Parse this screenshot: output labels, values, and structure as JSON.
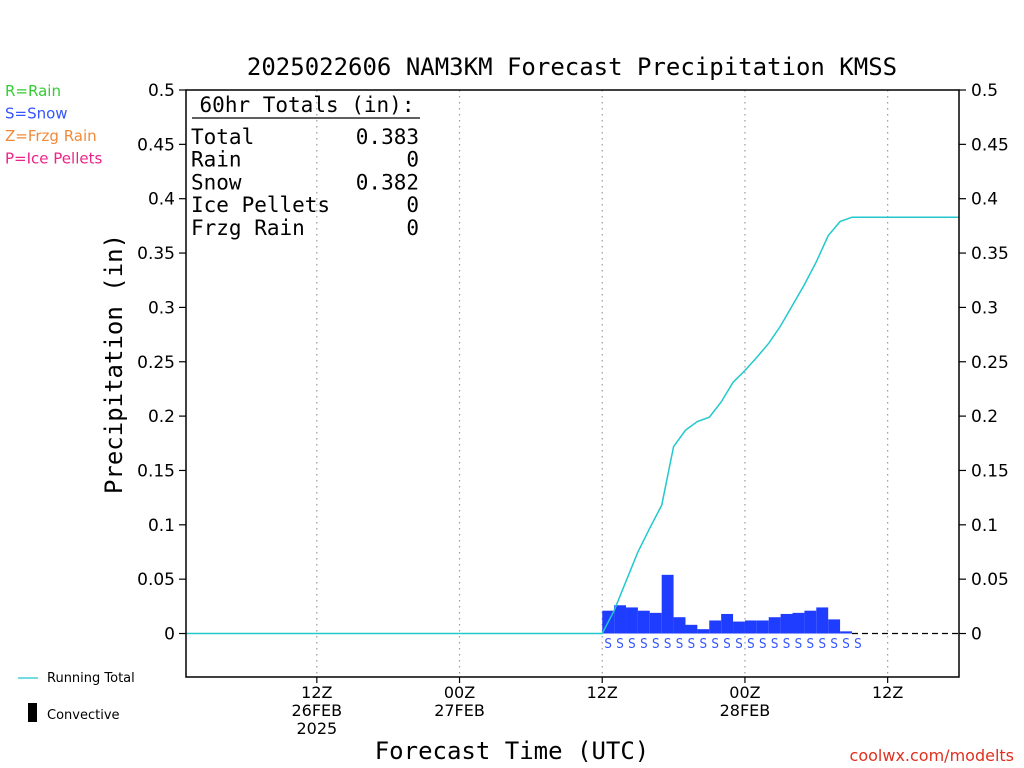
{
  "chart_data": {
    "type": "bar",
    "title": "2025022606 NAM3KM Forecast Precipitation KMSS",
    "xlabel": "Forecast Time (UTC)",
    "ylabel": "Precipitation (in)",
    "ylim": [
      -0.04,
      0.5
    ],
    "xlim": [
      -5,
      60
    ],
    "yticks": [
      0,
      0.05,
      0.1,
      0.15,
      0.2,
      0.25,
      0.3,
      0.35,
      0.4,
      0.45,
      0.5
    ],
    "ytick_labels": [
      "0",
      "0.05",
      "0.1",
      "0.15",
      "0.2",
      "0.25",
      "0.3",
      "0.35",
      "0.4",
      "0.45",
      "0.5"
    ],
    "xticks": [
      {
        "hour": 6,
        "lines": [
          "12Z",
          "26FEB",
          "2025"
        ]
      },
      {
        "hour": 18,
        "lines": [
          "00Z",
          "27FEB"
        ]
      },
      {
        "hour": 30,
        "lines": [
          "12Z"
        ]
      },
      {
        "hour": 42,
        "lines": [
          "00Z",
          "28FEB"
        ]
      },
      {
        "hour": 54,
        "lines": [
          "12Z"
        ]
      }
    ],
    "grid_x": true,
    "grid_y": false,
    "totals_box": {
      "title": "60hr Totals (in):",
      "rows": [
        {
          "label": "Total",
          "value": "0.383"
        },
        {
          "label": "Rain",
          "value": "0"
        },
        {
          "label": "Snow",
          "value": "0.382"
        },
        {
          "label": "Ice Pellets",
          "value": "0"
        },
        {
          "label": "Frzg Rain",
          "value": "0"
        }
      ]
    },
    "ptype_legend": [
      {
        "text": "R=Rain",
        "color": "#33cc33"
      },
      {
        "text": "S=Snow",
        "color": "#3355ff"
      },
      {
        "text": "Z=Frzg Rain",
        "color": "#f08a3a"
      },
      {
        "text": "P=Ice Pellets",
        "color": "#ee2288"
      }
    ],
    "legend": [
      {
        "text": "Running Total",
        "color": "#22c8cc"
      },
      {
        "text": "Convective",
        "color": "#000000"
      }
    ],
    "bar_color": "#1f3dff",
    "line_color": "#22c8cc",
    "bars": {
      "hours": [
        31,
        32,
        33,
        34,
        35,
        36,
        37,
        38,
        39,
        40,
        41,
        42,
        43,
        44,
        45,
        46,
        47,
        48,
        49,
        50,
        51
      ],
      "values": [
        0.021,
        0.026,
        0.024,
        0.021,
        0.019,
        0.054,
        0.015,
        0.008,
        0.004,
        0.012,
        0.018,
        0.011,
        0.012,
        0.012,
        0.015,
        0.018,
        0.019,
        0.021,
        0.024,
        0.013,
        0.002
      ],
      "ptype": [
        "S",
        "S",
        "S",
        "S",
        "S",
        "S",
        "S",
        "S",
        "S",
        "S",
        "S",
        "S",
        "S",
        "S",
        "S",
        "S",
        "S",
        "S",
        "S",
        "S",
        "S"
      ]
    },
    "running_total": {
      "hours": [
        -5,
        30,
        31,
        32,
        33,
        34,
        35,
        36,
        37,
        38,
        39,
        40,
        41,
        42,
        43,
        44,
        45,
        46,
        47,
        48,
        49,
        50,
        51,
        60
      ],
      "values": [
        0,
        0,
        0.021,
        0.048,
        0.075,
        0.097,
        0.118,
        0.172,
        0.187,
        0.195,
        0.199,
        0.213,
        0.231,
        0.242,
        0.254,
        0.267,
        0.283,
        0.302,
        0.321,
        0.342,
        0.366,
        0.379,
        0.383,
        0.383
      ]
    },
    "ptype_row": {
      "hours": [
        30,
        31,
        32,
        33,
        34,
        35,
        36,
        37,
        38,
        39,
        40,
        41,
        42,
        43,
        44,
        45,
        46,
        47,
        48,
        49,
        50,
        51
      ],
      "letters": [
        "S",
        "S",
        "S",
        "S",
        "S",
        "S",
        "S",
        "S",
        "S",
        "S",
        "S",
        "S",
        "S",
        "S",
        "S",
        "S",
        "S",
        "S",
        "S",
        "S",
        "S",
        "S"
      ]
    }
  },
  "watermark": "coolwx.com/modelts"
}
